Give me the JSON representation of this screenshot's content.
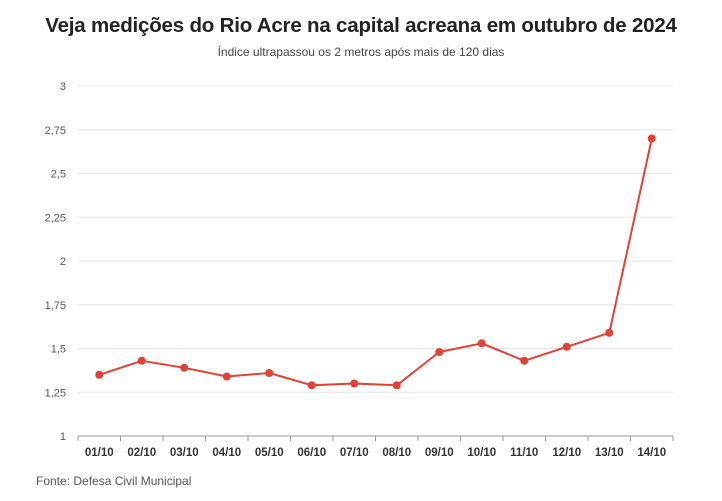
{
  "header": {
    "title": "Veja medições do Rio Acre na capital acreana em outubro de 2024",
    "subtitle": "Índice ultrapassou os 2 metros após mais de 120 dias"
  },
  "footer": {
    "source": "Fonte: Defesa Civil Municipal"
  },
  "colors": {
    "line": "#e04236",
    "grid": "#e6e6e6",
    "axis": "#999999"
  },
  "chart_data": {
    "type": "line",
    "title": "Veja medições do Rio Acre na capital acreana em outubro de 2024",
    "subtitle": "Índice ultrapassou os 2 metros após mais de 120 dias",
    "xlabel": "",
    "ylabel": "",
    "categories": [
      "01/10",
      "02/10",
      "03/10",
      "04/10",
      "05/10",
      "06/10",
      "07/10",
      "08/10",
      "09/10",
      "10/10",
      "11/10",
      "12/10",
      "13/10",
      "14/10"
    ],
    "values": [
      1.35,
      1.43,
      1.39,
      1.34,
      1.36,
      1.29,
      1.3,
      1.29,
      1.48,
      1.53,
      1.43,
      1.51,
      1.59,
      2.7
    ],
    "ylim": [
      1,
      3
    ],
    "yticks": [
      1,
      1.25,
      1.5,
      1.75,
      2,
      2.25,
      2.5,
      2.75,
      3
    ],
    "ytick_labels": [
      "1",
      "1,25",
      "1,5",
      "1,75",
      "2",
      "2,25",
      "2,5",
      "2,75",
      "3"
    ],
    "grid": true,
    "legend": "none"
  }
}
